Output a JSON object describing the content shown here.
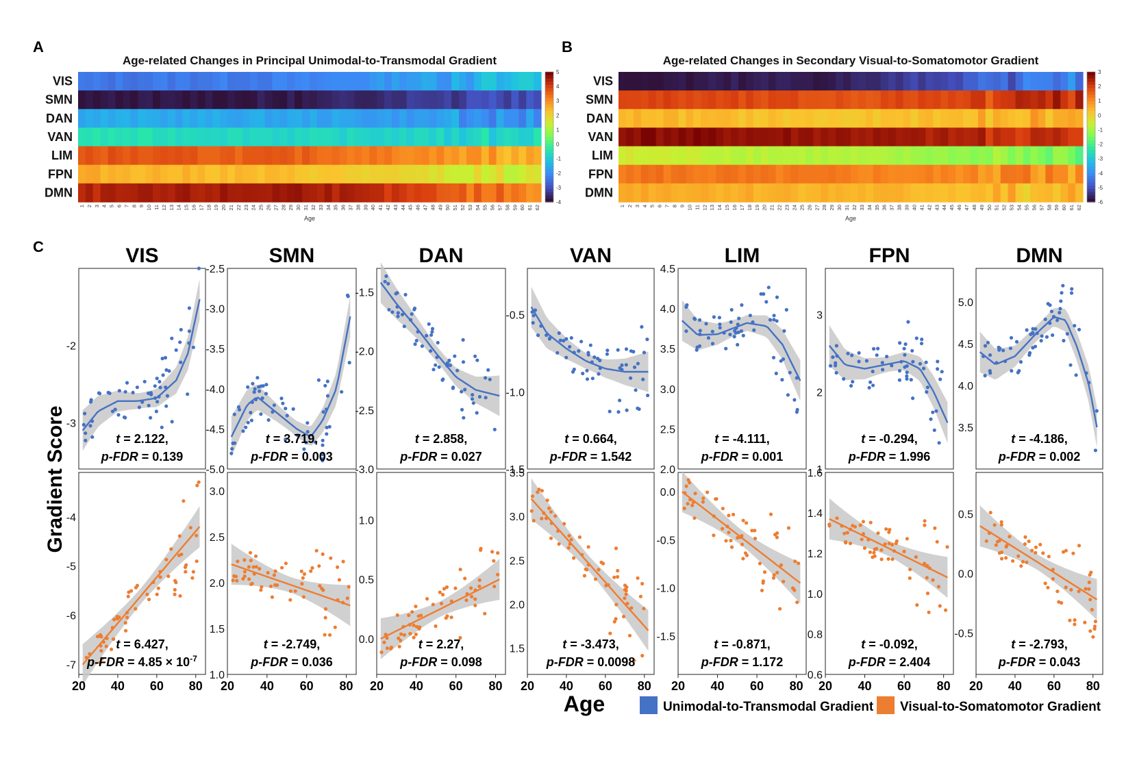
{
  "panel_letters": {
    "a": "A",
    "b": "B",
    "c": "C"
  },
  "chart_data": [
    {
      "id": "A",
      "type": "heatmap",
      "title": "Age-related Changes in Principal Unimodal-to-Transmodal Gradient",
      "xlabel": "Age",
      "x_categories": [
        "1",
        "2",
        "3",
        "4",
        "5",
        "6",
        "7",
        "8",
        "9",
        "10",
        "11",
        "12",
        "13",
        "14",
        "15",
        "16",
        "17",
        "18",
        "19",
        "20",
        "21",
        "22",
        "23",
        "24",
        "25",
        "26",
        "27",
        "28",
        "29",
        "30",
        "31",
        "32",
        "33",
        "34",
        "35",
        "36",
        "37",
        "38",
        "39",
        "40",
        "41",
        "42",
        "43",
        "44",
        "45",
        "46",
        "47",
        "48",
        "49",
        "50",
        "51",
        "52",
        "53",
        "54",
        "55",
        "56",
        "57",
        "58",
        "59",
        "60",
        "61",
        "62"
      ],
      "rows": [
        "VIS",
        "SMN",
        "DAN",
        "VAN",
        "LIM",
        "FPN",
        "DMN"
      ],
      "colorbar": {
        "min": -4,
        "max": 5,
        "ticks": [
          "5",
          "4",
          "3",
          "2",
          "1",
          "0",
          "-1",
          "-2",
          "-3",
          "-4"
        ]
      },
      "colormap": "turbo",
      "row_profiles": [
        {
          "network": "VIS",
          "start": -2.5,
          "middle": -2.3,
          "end": -1.2
        },
        {
          "network": "SMN",
          "start": -4.0,
          "middle": -3.9,
          "end": -2.8
        },
        {
          "network": "DAN",
          "start": -1.6,
          "middle": -1.7,
          "end": -2.1
        },
        {
          "network": "VAN",
          "start": -0.5,
          "middle": -0.8,
          "end": -0.9
        },
        {
          "network": "LIM",
          "start": 3.8,
          "middle": 3.6,
          "end": 2.6
        },
        {
          "network": "FPN",
          "start": 2.6,
          "middle": 2.3,
          "end": 1.3
        },
        {
          "network": "DMN",
          "start": 4.4,
          "middle": 4.7,
          "end": 3.2
        }
      ]
    },
    {
      "id": "B",
      "type": "heatmap",
      "title": "Age-related Changes in Secondary Visual-to-Somatomotor Gradient",
      "xlabel": "Age",
      "x_categories": [
        "1",
        "2",
        "3",
        "4",
        "5",
        "6",
        "7",
        "8",
        "9",
        "10",
        "11",
        "12",
        "13",
        "14",
        "15",
        "16",
        "17",
        "18",
        "19",
        "20",
        "21",
        "22",
        "23",
        "24",
        "25",
        "26",
        "27",
        "28",
        "29",
        "30",
        "31",
        "32",
        "33",
        "34",
        "35",
        "36",
        "37",
        "38",
        "39",
        "40",
        "41",
        "42",
        "43",
        "44",
        "45",
        "46",
        "47",
        "48",
        "49",
        "50",
        "51",
        "52",
        "53",
        "54",
        "55",
        "56",
        "57",
        "58",
        "59",
        "60",
        "61",
        "62"
      ],
      "rows": [
        "VIS",
        "SMN",
        "DAN",
        "VAN",
        "LIM",
        "FPN",
        "DMN"
      ],
      "colorbar": {
        "min": -6,
        "max": 3,
        "ticks": [
          "3",
          "2",
          "1",
          "0",
          "-1",
          "-2",
          "-3",
          "-4",
          "-5",
          "-6"
        ]
      },
      "colormap": "turbo",
      "row_profiles": [
        {
          "network": "VIS",
          "start": -6.0,
          "middle": -5.8,
          "end": -4.2
        },
        {
          "network": "SMN",
          "start": 2.0,
          "middle": 1.8,
          "end": 2.3
        },
        {
          "network": "DAN",
          "start": 0.5,
          "middle": 0.2,
          "end": 0.6
        },
        {
          "network": "VAN",
          "start": 2.9,
          "middle": 2.7,
          "end": 2.2
        },
        {
          "network": "LIM",
          "start": -0.5,
          "middle": -0.9,
          "end": -1.5
        },
        {
          "network": "FPN",
          "start": 1.4,
          "middle": 1.2,
          "end": 1.0
        },
        {
          "network": "DMN",
          "start": 0.7,
          "middle": 0.5,
          "end": 0.3
        }
      ]
    },
    {
      "id": "C",
      "type": "scatter",
      "xlabel": "Age",
      "ylabel": "Gradient Score",
      "xlim": [
        20,
        85
      ],
      "xticks": [
        "20",
        "40",
        "60",
        "80"
      ],
      "series": [
        {
          "name": "Unimodal-to-Transmodal Gradient",
          "color": "#4472c4"
        },
        {
          "name": "Visual-to-Somatomotor Gradient",
          "color": "#ed7d31"
        }
      ],
      "panels": [
        {
          "network": "VIS",
          "gradient": "Unimodal-to-Transmodal Gradient",
          "ylim": [
            -3.6,
            -1.0
          ],
          "yticks": [
            "-2",
            "-3"
          ],
          "fit": [
            [
              22,
              -3.1
            ],
            [
              30,
              -2.85
            ],
            [
              40,
              -2.72
            ],
            [
              50,
              -2.72
            ],
            [
              60,
              -2.68
            ],
            [
              70,
              -2.45
            ],
            [
              76,
              -2.1
            ],
            [
              82,
              -1.4
            ]
          ],
          "t": "2.122",
          "p": "0.139",
          "p_exp": ""
        },
        {
          "network": "SMN",
          "gradient": "Unimodal-to-Transmodal Gradient",
          "ylim": [
            -5.0,
            -2.5
          ],
          "yticks": [
            "-2.5",
            "-3.0",
            "-3.5",
            "-4.0",
            "-4.5",
            "-5.0"
          ],
          "fit": [
            [
              22,
              -4.6
            ],
            [
              30,
              -4.2
            ],
            [
              35,
              -4.1
            ],
            [
              45,
              -4.3
            ],
            [
              55,
              -4.5
            ],
            [
              62,
              -4.6
            ],
            [
              68,
              -4.4
            ],
            [
              75,
              -4.0
            ],
            [
              82,
              -3.1
            ]
          ],
          "t": "3.719",
          "p": "0.003",
          "p_exp": ""
        },
        {
          "network": "DAN",
          "gradient": "Unimodal-to-Transmodal Gradient",
          "ylim": [
            -3.0,
            -1.3
          ],
          "yticks": [
            "-1.5",
            "-2.0",
            "-2.5",
            "-3.0"
          ],
          "fit": [
            [
              22,
              -1.42
            ],
            [
              30,
              -1.6
            ],
            [
              40,
              -1.8
            ],
            [
              50,
              -2.02
            ],
            [
              60,
              -2.22
            ],
            [
              70,
              -2.33
            ],
            [
              82,
              -2.38
            ]
          ],
          "t": "2.858",
          "p": "0.027",
          "p_exp": ""
        },
        {
          "network": "VAN",
          "gradient": "Unimodal-to-Transmodal Gradient",
          "ylim": [
            -1.5,
            -0.2
          ],
          "yticks": [
            "-0.5",
            "-1.0",
            "-1.5"
          ],
          "fit": [
            [
              22,
              -0.45
            ],
            [
              30,
              -0.62
            ],
            [
              40,
              -0.72
            ],
            [
              50,
              -0.8
            ],
            [
              60,
              -0.85
            ],
            [
              70,
              -0.87
            ],
            [
              82,
              -0.87
            ]
          ],
          "t": "0.664",
          "p": "1.542",
          "p_exp": ""
        },
        {
          "network": "LIM",
          "gradient": "Unimodal-to-Transmodal Gradient",
          "ylim": [
            2.0,
            4.5
          ],
          "yticks": [
            "4.5",
            "4.0",
            "3.5",
            "3.0",
            "2.5",
            "2.0"
          ],
          "fit": [
            [
              22,
              3.85
            ],
            [
              30,
              3.67
            ],
            [
              40,
              3.68
            ],
            [
              55,
              3.82
            ],
            [
              65,
              3.78
            ],
            [
              73,
              3.55
            ],
            [
              82,
              3.1
            ]
          ],
          "t": "-4.111",
          "p": "0.001",
          "p_exp": ""
        },
        {
          "network": "FPN",
          "gradient": "Unimodal-to-Transmodal Gradient",
          "ylim": [
            1.0,
            3.6
          ],
          "yticks": [
            "3",
            "2",
            "1"
          ],
          "fit": [
            [
              22,
              2.6
            ],
            [
              30,
              2.35
            ],
            [
              40,
              2.3
            ],
            [
              50,
              2.35
            ],
            [
              60,
              2.4
            ],
            [
              68,
              2.3
            ],
            [
              75,
              2.0
            ],
            [
              82,
              1.6
            ]
          ],
          "t": "-0.294",
          "p": "1.996",
          "p_exp": ""
        },
        {
          "network": "DMN",
          "gradient": "Unimodal-to-Transmodal Gradient",
          "ylim": [
            3.0,
            5.4
          ],
          "yticks": [
            "5.0",
            "4.5",
            "4.0",
            "3.5"
          ],
          "fit": [
            [
              22,
              4.4
            ],
            [
              30,
              4.25
            ],
            [
              40,
              4.35
            ],
            [
              50,
              4.6
            ],
            [
              60,
              4.82
            ],
            [
              66,
              4.78
            ],
            [
              72,
              4.45
            ],
            [
              78,
              4.0
            ],
            [
              82,
              3.5
            ]
          ],
          "t": "-4.186",
          "p": "0.002",
          "p_exp": ""
        },
        {
          "network": "VIS",
          "gradient": "Visual-to-Somatomotor Gradient",
          "ylim": [
            -7.2,
            -3.1
          ],
          "yticks": [
            "-4",
            "-5",
            "-6",
            "-7"
          ],
          "fit": [
            [
              22,
              -7.0
            ],
            [
              82,
              -4.2
            ]
          ],
          "t": "6.427",
          "p": "4.85 × 10",
          "p_exp": "-7"
        },
        {
          "network": "SMN",
          "gradient": "Visual-to-Somatomotor Gradient",
          "ylim": [
            1.0,
            3.2
          ],
          "yticks": [
            "3.0",
            "2.5",
            "2.0",
            "1.5",
            "1.0"
          ],
          "fit": [
            [
              22,
              2.2
            ],
            [
              82,
              1.75
            ]
          ],
          "t": "-2.749",
          "p": "0.036",
          "p_exp": ""
        },
        {
          "network": "DAN",
          "gradient": "Visual-to-Somatomotor Gradient",
          "ylim": [
            -0.3,
            1.4
          ],
          "yticks": [
            "1.0",
            "0.5",
            "0.0"
          ],
          "fit": [
            [
              22,
              0.0
            ],
            [
              82,
              0.5
            ]
          ],
          "t": "2.27",
          "p": "0.098",
          "p_exp": ""
        },
        {
          "network": "VAN",
          "gradient": "Visual-to-Somatomotor Gradient",
          "ylim": [
            1.2,
            3.5
          ],
          "yticks": [
            "3.5",
            "3.0",
            "2.5",
            "2.0",
            "1.5"
          ],
          "fit": [
            [
              22,
              3.2
            ],
            [
              82,
              1.7
            ]
          ],
          "t": "-3.473",
          "p": "0.0098",
          "p_exp": ""
        },
        {
          "network": "LIM",
          "gradient": "Visual-to-Somatomotor Gradient",
          "ylim": [
            -1.9,
            0.2
          ],
          "yticks": [
            "0.0",
            "-0.5",
            "-1.0",
            "-1.5"
          ],
          "fit": [
            [
              22,
              0.0
            ],
            [
              82,
              -0.95
            ]
          ],
          "t": "-0.871",
          "p": "1.172",
          "p_exp": ""
        },
        {
          "network": "FPN",
          "gradient": "Visual-to-Somatomotor Gradient",
          "ylim": [
            0.6,
            1.6
          ],
          "yticks": [
            "1.6",
            "1.4",
            "1.2",
            "1.0",
            "0.8",
            "0.6"
          ],
          "fit": [
            [
              22,
              1.37
            ],
            [
              82,
              1.08
            ]
          ],
          "t": "-0.092",
          "p": "2.404",
          "p_exp": ""
        },
        {
          "network": "DMN",
          "gradient": "Visual-to-Somatomotor Gradient",
          "ylim": [
            -0.85,
            0.85
          ],
          "yticks": [
            "0.5",
            "0.0",
            "-0.5"
          ],
          "fit": [
            [
              22,
              0.4
            ],
            [
              82,
              -0.22
            ]
          ],
          "t": "-2.793",
          "p": "0.043",
          "p_exp": ""
        }
      ]
    }
  ],
  "legend": {
    "items": [
      {
        "label": "Unimodal-to-Transmodal Gradient",
        "color": "#4472c4"
      },
      {
        "label": "Visual-to-Somatomotor Gradient",
        "color": "#ed7d31"
      }
    ]
  }
}
